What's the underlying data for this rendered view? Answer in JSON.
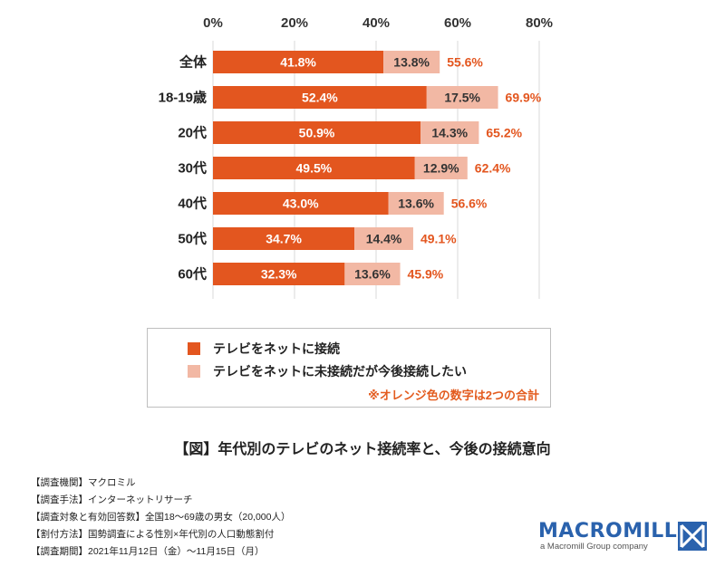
{
  "chart_data": {
    "type": "bar",
    "orientation": "horizontal",
    "stacked": true,
    "categories": [
      "全体",
      "18-19歳",
      "20代",
      "30代",
      "40代",
      "50代",
      "60代"
    ],
    "series": [
      {
        "name": "テレビをネットに接続",
        "color": "#e3561f",
        "values": [
          41.8,
          52.4,
          50.9,
          49.5,
          43.0,
          34.7,
          32.3
        ]
      },
      {
        "name": "テレビをネットに未接続だが今後接続したい",
        "color": "#f2b8a4",
        "values": [
          13.8,
          17.5,
          14.3,
          12.9,
          13.6,
          14.4,
          13.6
        ]
      }
    ],
    "totals": [
      55.6,
      69.9,
      65.2,
      62.4,
      56.6,
      49.1,
      45.9
    ],
    "xlim": [
      0,
      80
    ],
    "x_ticks": [
      "0%",
      "20%",
      "40%",
      "60%",
      "80%"
    ],
    "value_suffix": "%",
    "grid": true,
    "legend_position": "bottom",
    "total_color": "#e3561f"
  },
  "legend": {
    "items": [
      {
        "label": "テレビをネットに接続",
        "color": "#e3561f"
      },
      {
        "label": "テレビをネットに未接続だが今後接続したい",
        "color": "#f2b8a4"
      }
    ],
    "note": "※オレンジ色の数字は2つの合計"
  },
  "caption": "【図】年代別のテレビのネット接続率と、今後の接続意向",
  "meta": [
    "【調査機関】マクロミル",
    "【調査手法】インターネットリサーチ",
    "【調査対象と有効回答数】全国18～69歳の男女（20,000人）",
    "【割付方法】国勢調査による性別×年代別の人口動態割付",
    "【調査期間】2021年11月12日（金）～11月15日（月）"
  ],
  "logo": {
    "name": "MACROMILL",
    "tagline": "a Macromill Group company"
  }
}
